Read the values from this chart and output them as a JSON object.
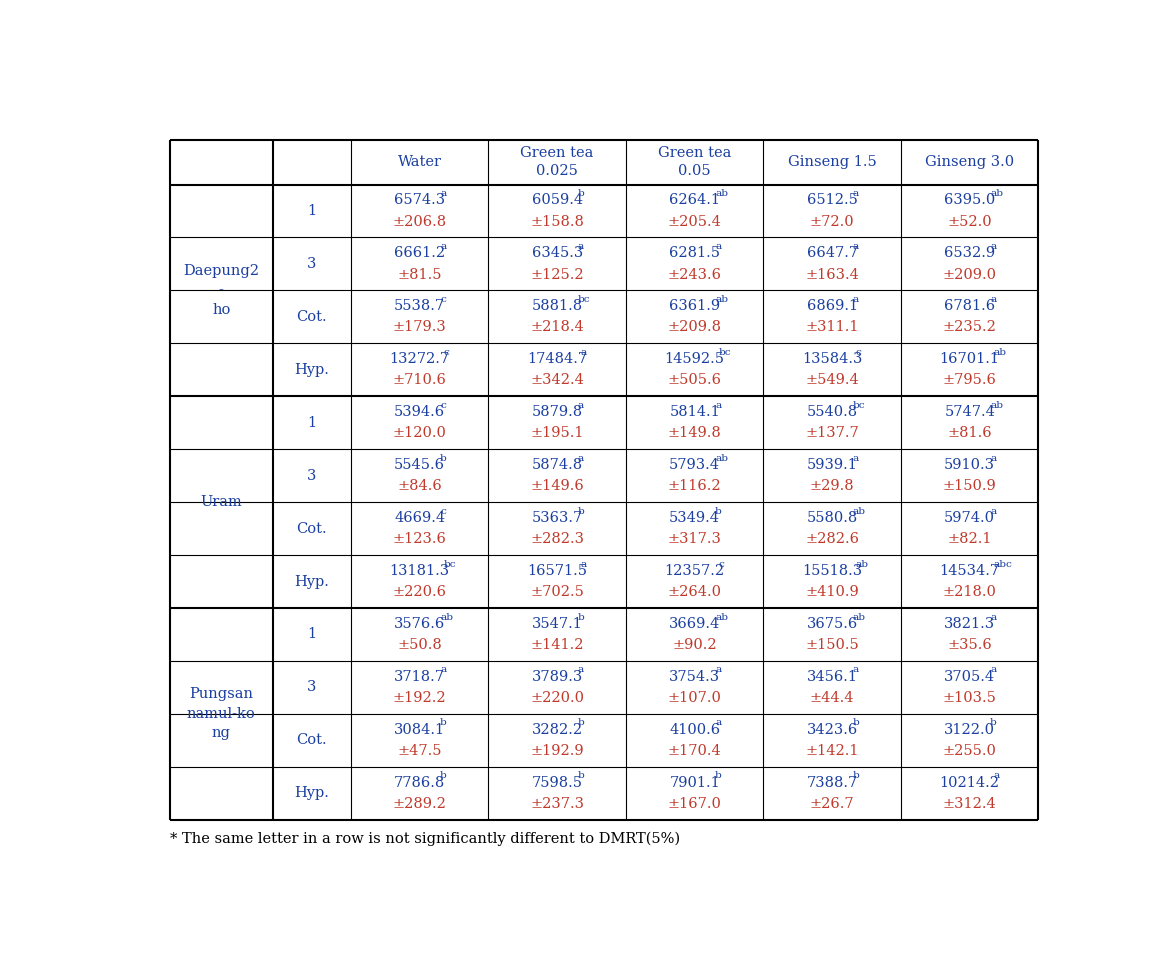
{
  "col_headers": [
    "",
    "",
    "Water",
    "Green tea\n0.025",
    "Green tea\n0.05",
    "Ginseng 1.5",
    "Ginseng 3.0"
  ],
  "row_groups": [
    {
      "cultivar": "Daepung2\n-\nho",
      "rows": [
        {
          "period": "1",
          "main": [
            "6574.3",
            "6059.4",
            "6264.1",
            "6512.5",
            "6395.0"
          ],
          "sup": [
            "a",
            "b",
            "ab",
            "a",
            "ab"
          ],
          "errors": [
            "±206.8",
            "±158.8",
            "±205.4",
            "±72.0",
            "±52.0"
          ]
        },
        {
          "period": "3",
          "main": [
            "6661.2",
            "6345.3",
            "6281.5",
            "6647.7",
            "6532.9"
          ],
          "sup": [
            "a",
            "a",
            "a",
            "a",
            "a"
          ],
          "errors": [
            "±81.5",
            "±125.2",
            "±243.6",
            "±163.4",
            "±209.0"
          ]
        },
        {
          "period": "Cot.",
          "main": [
            "5538.7",
            "5881.8",
            "6361.9",
            "6869.1",
            "6781.6"
          ],
          "sup": [
            "c",
            "bc",
            "ab",
            "a",
            "a"
          ],
          "errors": [
            "±179.3",
            "±218.4",
            "±209.8",
            "±311.1",
            "±235.2"
          ]
        },
        {
          "period": "Hyp.",
          "main": [
            "13272.7",
            "17484.7",
            "14592.5",
            "13584.3",
            "16701.1"
          ],
          "sup": [
            "c",
            "a",
            "bc",
            "c",
            "ab"
          ],
          "errors": [
            "±710.6",
            "±342.4",
            "±505.6",
            "±549.4",
            "±795.6"
          ]
        }
      ]
    },
    {
      "cultivar": "Uram",
      "rows": [
        {
          "period": "1",
          "main": [
            "5394.6",
            "5879.8",
            "5814.1",
            "5540.8",
            "5747.4"
          ],
          "sup": [
            "c",
            "a",
            "a",
            "bc",
            "ab"
          ],
          "errors": [
            "±120.0",
            "±195.1",
            "±149.8",
            "±137.7",
            "±81.6"
          ]
        },
        {
          "period": "3",
          "main": [
            "5545.6",
            "5874.8",
            "5793.4",
            "5939.1",
            "5910.3"
          ],
          "sup": [
            "b",
            "a",
            "ab",
            "a",
            "a"
          ],
          "errors": [
            "±84.6",
            "±149.6",
            "±116.2",
            "±29.8",
            "±150.9"
          ]
        },
        {
          "period": "Cot.",
          "main": [
            "4669.4",
            "5363.7",
            "5349.4",
            "5580.8",
            "5974.0"
          ],
          "sup": [
            "c",
            "b",
            "b",
            "ab",
            "a"
          ],
          "errors": [
            "±123.6",
            "±282.3",
            "±317.3",
            "±282.6",
            "±82.1"
          ]
        },
        {
          "period": "Hyp.",
          "main": [
            "13181.3",
            "16571.5",
            "12357.2",
            "15518.3",
            "14534.7"
          ],
          "sup": [
            "bc",
            "a",
            "c",
            "ab",
            "abc"
          ],
          "errors": [
            "±220.6",
            "±702.5",
            "±264.0",
            "±410.9",
            "±218.0"
          ]
        }
      ]
    },
    {
      "cultivar": "Pungsan\nnamul-ko\nng",
      "rows": [
        {
          "period": "1",
          "main": [
            "3576.6",
            "3547.1",
            "3669.4",
            "3675.6",
            "3821.3"
          ],
          "sup": [
            "ab",
            "b",
            "ab",
            "ab",
            "a"
          ],
          "errors": [
            "±50.8",
            "±141.2",
            "±90.2",
            "±150.5",
            "±35.6"
          ]
        },
        {
          "period": "3",
          "main": [
            "3718.7",
            "3789.3",
            "3754.3",
            "3456.1",
            "3705.4"
          ],
          "sup": [
            "a",
            "a",
            "a",
            "a",
            "a"
          ],
          "errors": [
            "±192.2",
            "±220.0",
            "±107.0",
            "±44.4",
            "±103.5"
          ]
        },
        {
          "period": "Cot.",
          "main": [
            "3084.1",
            "3282.2",
            "4100.6",
            "3423.6",
            "3122.0"
          ],
          "sup": [
            "b",
            "b",
            "a",
            "b",
            "b"
          ],
          "errors": [
            "±47.5",
            "±192.9",
            "±170.4",
            "±142.1",
            "±255.0"
          ]
        },
        {
          "period": "Hyp.",
          "main": [
            "7786.8",
            "7598.5",
            "7901.1",
            "7388.7",
            "10214.2"
          ],
          "sup": [
            "b",
            "b",
            "b",
            "b",
            "a"
          ],
          "errors": [
            "±289.2",
            "±237.3",
            "±167.0",
            "±26.7",
            "±312.4"
          ]
        }
      ]
    }
  ],
  "footnote": "* The same letter in a row is not significantly different to DMRT(5%)",
  "value_color": "#1a3fa0",
  "error_color": "#c0392b",
  "header_color": "#1a3fa0",
  "label_color": "#1a3fa0",
  "border_color": "#000000",
  "bg_color": "#ffffff"
}
